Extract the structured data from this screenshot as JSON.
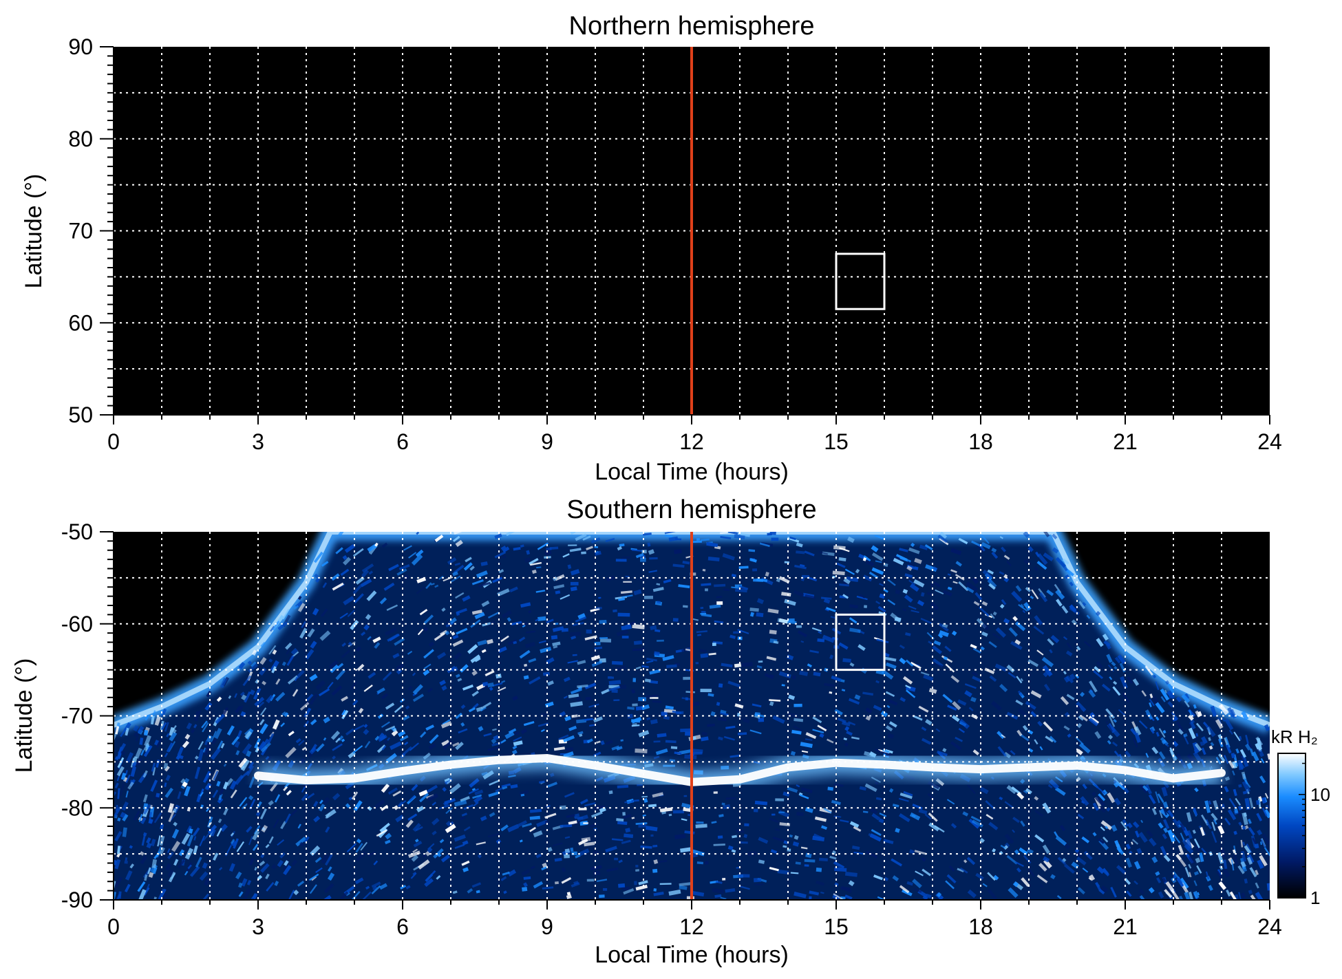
{
  "chart_data": [
    {
      "type": "heatmap",
      "title": "Northern hemisphere",
      "xlabel": "Local Time (hours)",
      "ylabel": "Latitude (°)",
      "xlim": [
        0,
        24
      ],
      "ylim": [
        50,
        90
      ],
      "xticks": [
        "0",
        "3",
        "6",
        "9",
        "12",
        "15",
        "18",
        "21",
        "24"
      ],
      "yticks": [
        "50",
        "60",
        "70",
        "80",
        "90"
      ],
      "grid": true,
      "background": "#000000",
      "coverage": "none",
      "marker_line": {
        "x": 12,
        "color": "#e0401a"
      },
      "box": {
        "x": [
          15,
          16
        ],
        "y": [
          61.5,
          67.5
        ],
        "color": "#ffffff"
      }
    },
    {
      "type": "heatmap",
      "title": "Southern hemisphere",
      "xlabel": "Local Time (hours)",
      "ylabel": "Latitude (°)",
      "xlim": [
        0,
        24
      ],
      "ylim": [
        -90,
        -50
      ],
      "xticks": [
        "0",
        "3",
        "6",
        "9",
        "12",
        "15",
        "18",
        "21",
        "24"
      ],
      "yticks": [
        "-90",
        "-80",
        "-70",
        "-60",
        "-50"
      ],
      "grid": true,
      "background": "#000000",
      "coverage_edge": {
        "local_time": [
          0,
          1,
          2,
          3,
          4,
          4.5,
          19.5,
          20,
          21,
          22,
          23,
          24
        ],
        "latitude": [
          -71,
          -69,
          -66.5,
          -62.5,
          -55.5,
          -50,
          -50,
          -55.5,
          -62.5,
          -66.5,
          -69,
          -71
        ]
      },
      "auroral_oval": {
        "local_time": [
          3,
          4,
          5,
          6,
          7,
          8,
          9,
          10,
          11,
          12,
          13,
          14,
          15,
          16,
          17,
          18,
          19,
          20,
          21,
          22,
          23
        ],
        "latitude": [
          -76.5,
          -77,
          -76.8,
          -76,
          -75.3,
          -74.8,
          -74.6,
          -75.4,
          -76.3,
          -77.2,
          -76.9,
          -75.6,
          -75.1,
          -75.3,
          -75.6,
          -75.8,
          -75.6,
          -75.4,
          -75.9,
          -76.8,
          -76.2
        ]
      },
      "marker_line": {
        "x": 12,
        "color": "#e0401a"
      },
      "box": {
        "x": [
          15,
          16
        ],
        "y": [
          -65,
          -59
        ],
        "color": "#ffffff"
      },
      "colorbar": {
        "title": "kR H₂",
        "scale": "log",
        "range": [
          1,
          25
        ],
        "ticks": [
          "1",
          "10"
        ],
        "colors": [
          "#000000",
          "#001a66",
          "#0047c2",
          "#1a8cff",
          "#7ec8ff",
          "#ffffff"
        ]
      }
    }
  ]
}
